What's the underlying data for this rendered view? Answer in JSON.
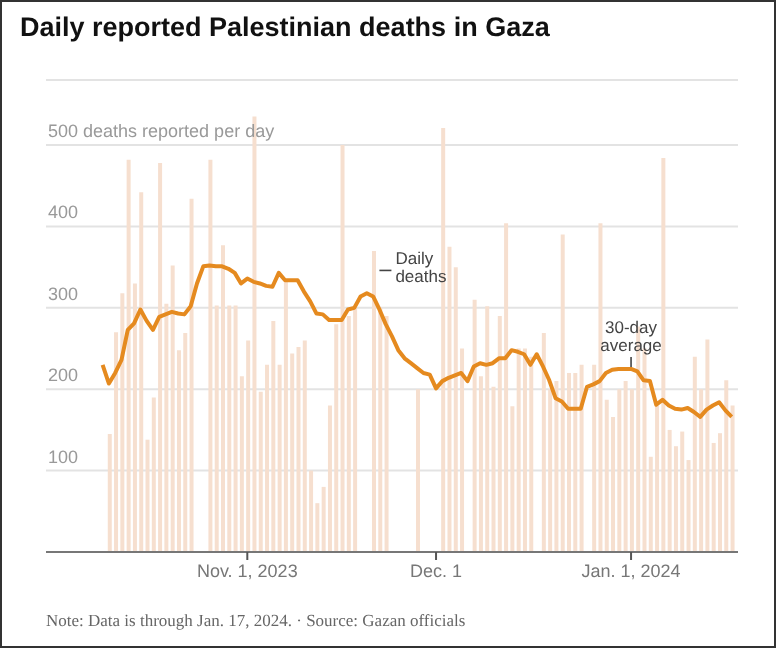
{
  "chart_data": {
    "type": "bar",
    "title": "Daily reported Palestinian deaths in Gaza",
    "x": [
      "2023-10-09",
      "2023-10-10",
      "2023-10-11",
      "2023-10-12",
      "2023-10-13",
      "2023-10-14",
      "2023-10-15",
      "2023-10-16",
      "2023-10-17",
      "2023-10-18",
      "2023-10-19",
      "2023-10-20",
      "2023-10-21",
      "2023-10-22",
      "2023-10-23",
      "2023-10-24",
      "2023-10-25",
      "2023-10-26",
      "2023-10-27",
      "2023-10-28",
      "2023-10-29",
      "2023-10-30",
      "2023-10-31",
      "2023-11-01",
      "2023-11-02",
      "2023-11-03",
      "2023-11-04",
      "2023-11-05",
      "2023-11-06",
      "2023-11-07",
      "2023-11-08",
      "2023-11-09",
      "2023-11-10",
      "2023-11-11",
      "2023-11-12",
      "2023-11-13",
      "2023-11-14",
      "2023-11-15",
      "2023-11-16",
      "2023-11-17",
      "2023-11-18",
      "2023-11-19",
      "2023-11-20",
      "2023-11-21",
      "2023-11-22",
      "2023-11-23",
      "2023-11-24",
      "2023-11-25",
      "2023-11-26",
      "2023-11-27",
      "2023-11-28",
      "2023-11-29",
      "2023-11-30",
      "2023-12-01",
      "2023-12-02",
      "2023-12-03",
      "2023-12-04",
      "2023-12-05",
      "2023-12-06",
      "2023-12-07",
      "2023-12-08",
      "2023-12-09",
      "2023-12-10",
      "2023-12-11",
      "2023-12-12",
      "2023-12-13",
      "2023-12-14",
      "2023-12-15",
      "2023-12-16",
      "2023-12-17",
      "2023-12-18",
      "2023-12-19",
      "2023-12-20",
      "2023-12-21",
      "2023-12-22",
      "2023-12-23",
      "2023-12-24",
      "2023-12-25",
      "2023-12-26",
      "2023-12-27",
      "2023-12-28",
      "2023-12-29",
      "2023-12-30",
      "2023-12-31",
      "2024-01-01",
      "2024-01-02",
      "2024-01-03",
      "2024-01-04",
      "2024-01-05",
      "2024-01-06",
      "2024-01-07",
      "2024-01-08",
      "2024-01-09",
      "2024-01-10",
      "2024-01-11",
      "2024-01-12",
      "2024-01-13",
      "2024-01-14",
      "2024-01-15",
      "2024-01-16",
      "2024-01-17"
    ],
    "series": [
      {
        "color": "#f6dfcf",
        "values": [
          null,
          145,
          270,
          318,
          482,
          330,
          442,
          138,
          190,
          478,
          305,
          352,
          248,
          269,
          434,
          null,
          null,
          482,
          303,
          377,
          303,
          303,
          216,
          260,
          535,
          197,
          230,
          284,
          230,
          334,
          244,
          252,
          260,
          100,
          60,
          80,
          180,
          280,
          500,
          290,
          300,
          null,
          null,
          370,
          300,
          290,
          null,
          null,
          null,
          null,
          200,
          null,
          null,
          null,
          521,
          375,
          350,
          250,
          null,
          310,
          216,
          302,
          203,
          290,
          404,
          179,
          250,
          250,
          240,
          null,
          269,
          200,
          210,
          390,
          220,
          220,
          230,
          null,
          230,
          404,
          187,
          166,
          200,
          210,
          200,
          277,
          250,
          117,
          180,
          484,
          150,
          130,
          148,
          113,
          240,
          200,
          261,
          134,
          146,
          211,
          180
        ]
      },
      {
        "type": "line",
        "color": "#e58a1f",
        "values": [
          230,
          207,
          220,
          236,
          273,
          281,
          298,
          284,
          273,
          289,
          292,
          295,
          293,
          292,
          302,
          330,
          351,
          352,
          351,
          351,
          348,
          343,
          330,
          336,
          332,
          330,
          327,
          326,
          343,
          334,
          334,
          334,
          320,
          308,
          293,
          292,
          285,
          285,
          285,
          298,
          300,
          314,
          318,
          314,
          298,
          280,
          265,
          248,
          238,
          232,
          226,
          220,
          218,
          201,
          210,
          214,
          217,
          220,
          210,
          228,
          232,
          230,
          232,
          238,
          238,
          248,
          246,
          243,
          230,
          243,
          228,
          211,
          189,
          185,
          176,
          176,
          176,
          203,
          206,
          210,
          220,
          224,
          225,
          225,
          225,
          222,
          211,
          210,
          181,
          187,
          180,
          176,
          175,
          177,
          172,
          166,
          175,
          180,
          184,
          174,
          166
        ]
      }
    ],
    "xlim": [
      "2023-09-30",
      "2024-01-18"
    ],
    "xticks": [
      {
        "value": "2023-11-01",
        "label": "Nov. 1, 2023"
      },
      {
        "value": "2023-12-01",
        "label": "Dec. 1"
      },
      {
        "value": "2024-01-01",
        "label": "Jan. 1, 2024"
      }
    ],
    "ylim": [
      0,
      580
    ],
    "yticks": [
      100,
      200,
      300,
      400,
      {
        "value": 500,
        "label": "500 deaths reported per day"
      }
    ],
    "grid": "y",
    "marker": "none",
    "annotations": [
      {
        "text": "Daily deaths",
        "x": "2023-11-22",
        "y": 346
      },
      {
        "text": "30-day average",
        "x": "2024-01-01",
        "y": 225
      },
      "Note: Data is through Jan. 17, 2024. · Source: Gazan officials"
    ]
  }
}
